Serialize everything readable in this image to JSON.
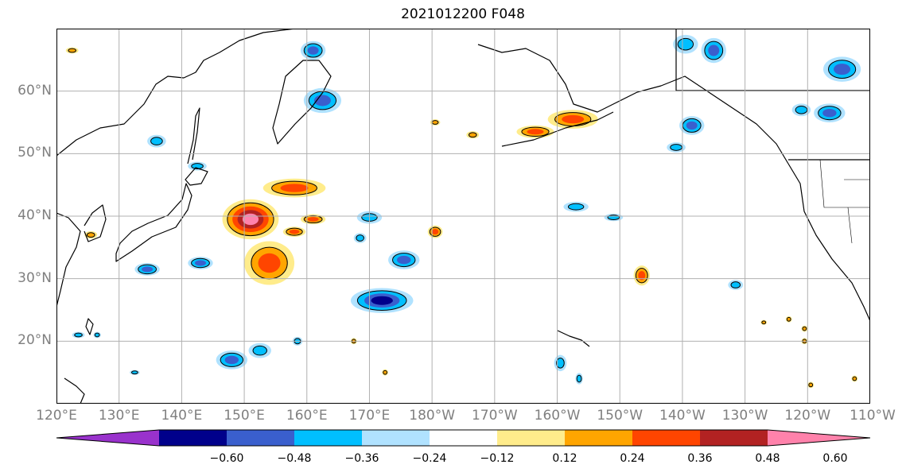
{
  "title": "2021012200 F048",
  "map": {
    "lon_range": [
      120,
      250
    ],
    "lat_range": [
      10,
      70
    ],
    "lat_ticks": [
      {
        "value": 20,
        "label": "20°N"
      },
      {
        "value": 30,
        "label": "30°N"
      },
      {
        "value": 40,
        "label": "40°N"
      },
      {
        "value": 50,
        "label": "50°N"
      },
      {
        "value": 60,
        "label": "60°N"
      }
    ],
    "lon_ticks": [
      {
        "value": 120,
        "label": "120°E"
      },
      {
        "value": 130,
        "label": "130°E"
      },
      {
        "value": 140,
        "label": "140°E"
      },
      {
        "value": 150,
        "label": "150°E"
      },
      {
        "value": 160,
        "label": "160°E"
      },
      {
        "value": 170,
        "label": "170°E"
      },
      {
        "value": 180,
        "label": "180°W"
      },
      {
        "value": 190,
        "label": "170°W"
      },
      {
        "value": 200,
        "label": "160°W"
      },
      {
        "value": 210,
        "label": "150°W"
      },
      {
        "value": 220,
        "label": "140°W"
      },
      {
        "value": 230,
        "label": "130°W"
      },
      {
        "value": 240,
        "label": "120°W"
      },
      {
        "value": 250,
        "label": "110°W"
      }
    ],
    "gridlines": true,
    "coastlines": true
  },
  "colorbar": {
    "levels": [
      -0.6,
      -0.48,
      -0.36,
      -0.24,
      -0.12,
      0.12,
      0.24,
      0.36,
      0.48,
      0.6
    ],
    "tick_labels": [
      "−0.60",
      "−0.48",
      "−0.36",
      "−0.24",
      "−0.12",
      "0.12",
      "0.24",
      "0.36",
      "0.48",
      "0.60"
    ],
    "colors": [
      "#9932cc",
      "#00008b",
      "#3a5fcd",
      "#00bfff",
      "#b0e2ff",
      "#ffffff",
      "#ffec8b",
      "#ffa500",
      "#ff4500",
      "#b22222",
      "#ff82ab"
    ],
    "extend": "both"
  },
  "anomalies": [
    {
      "lon": 151,
      "lat": 39.5,
      "rx": 4.5,
      "ry": 3.2,
      "value": 0.62
    },
    {
      "lon": 154,
      "lat": 32.5,
      "rx": 4,
      "ry": 3.5,
      "value": 0.42
    },
    {
      "lon": 158,
      "lat": 44.5,
      "rx": 5,
      "ry": 1.5,
      "value": 0.4
    },
    {
      "lon": 161,
      "lat": 39.5,
      "rx": 2,
      "ry": 0.8,
      "value": 0.4
    },
    {
      "lon": 158,
      "lat": 37.5,
      "rx": 1.8,
      "ry": 0.8,
      "value": 0.38
    },
    {
      "lon": 172,
      "lat": 26.5,
      "rx": 5,
      "ry": 2,
      "value": -0.48
    },
    {
      "lon": 175.5,
      "lat": 33,
      "rx": 2.5,
      "ry": 1.5,
      "value": -0.36
    },
    {
      "lon": 170,
      "lat": 39.8,
      "rx": 2,
      "ry": 1,
      "value": -0.32
    },
    {
      "lon": 168.5,
      "lat": 36.5,
      "rx": 1,
      "ry": 0.8,
      "value": -0.3
    },
    {
      "lon": 152.5,
      "lat": 18.5,
      "rx": 1.8,
      "ry": 1.2,
      "value": -0.32
    },
    {
      "lon": 148,
      "lat": 17,
      "rx": 2.5,
      "ry": 1.5,
      "value": -0.4
    },
    {
      "lon": 158.5,
      "lat": 20,
      "rx": 0.8,
      "ry": 0.7,
      "value": -0.3
    },
    {
      "lon": 143,
      "lat": 32.5,
      "rx": 2,
      "ry": 1,
      "value": -0.36
    },
    {
      "lon": 134.5,
      "lat": 31.5,
      "rx": 2,
      "ry": 1,
      "value": -0.36
    },
    {
      "lon": 162.5,
      "lat": 58.5,
      "rx": 3,
      "ry": 2,
      "value": -0.36
    },
    {
      "lon": 161,
      "lat": 66.5,
      "rx": 2,
      "ry": 1.5,
      "value": -0.36
    },
    {
      "lon": 142.5,
      "lat": 48,
      "rx": 1.5,
      "ry": 0.7,
      "value": -0.3
    },
    {
      "lon": 136,
      "lat": 52,
      "rx": 1.5,
      "ry": 1,
      "value": -0.3
    },
    {
      "lon": 202.5,
      "lat": 55.5,
      "rx": 4,
      "ry": 1.5,
      "value": 0.44
    },
    {
      "lon": 196.5,
      "lat": 53.5,
      "rx": 3,
      "ry": 1,
      "value": 0.4
    },
    {
      "lon": 180.5,
      "lat": 37.5,
      "rx": 1.2,
      "ry": 1,
      "value": 0.36
    },
    {
      "lon": 180.5,
      "lat": 55,
      "rx": 0.8,
      "ry": 0.5,
      "value": 0.34
    },
    {
      "lon": 186.5,
      "lat": 53,
      "rx": 1,
      "ry": 0.6,
      "value": 0.32
    },
    {
      "lon": 213.5,
      "lat": 30.5,
      "rx": 1.3,
      "ry": 1.6,
      "value": 0.38
    },
    {
      "lon": 203,
      "lat": 41.5,
      "rx": 2,
      "ry": 0.8,
      "value": -0.3
    },
    {
      "lon": 209,
      "lat": 39.8,
      "rx": 1.5,
      "ry": 0.6,
      "value": -0.3
    },
    {
      "lon": 221.5,
      "lat": 54.5,
      "rx": 2,
      "ry": 1.5,
      "value": -0.36
    },
    {
      "lon": 219,
      "lat": 51,
      "rx": 1.5,
      "ry": 0.8,
      "value": -0.3
    },
    {
      "lon": 243.5,
      "lat": 56.5,
      "rx": 2.5,
      "ry": 1.5,
      "value": -0.36
    },
    {
      "lon": 239,
      "lat": 57,
      "rx": 1.5,
      "ry": 1,
      "value": -0.34
    },
    {
      "lon": 245.5,
      "lat": 63.5,
      "rx": 3,
      "ry": 2,
      "value": -0.36
    },
    {
      "lon": 225,
      "lat": 66.5,
      "rx": 2,
      "ry": 2,
      "value": -0.36
    },
    {
      "lon": 220.5,
      "lat": 67.5,
      "rx": 2,
      "ry": 1.5,
      "value": -0.32
    },
    {
      "lon": 228.5,
      "lat": 29,
      "rx": 1.2,
      "ry": 0.8,
      "value": -0.32
    },
    {
      "lon": 200.5,
      "lat": 16.5,
      "rx": 1,
      "ry": 1.3,
      "value": -0.32
    },
    {
      "lon": 203.5,
      "lat": 14,
      "rx": 0.6,
      "ry": 0.9,
      "value": -0.3
    },
    {
      "lon": 122.5,
      "lat": 66.5,
      "rx": 1,
      "ry": 0.5,
      "value": 0.32
    },
    {
      "lon": 125.5,
      "lat": 37,
      "rx": 1,
      "ry": 0.6,
      "value": 0.3
    },
    {
      "lon": 239.5,
      "lat": 22,
      "rx": 0.5,
      "ry": 0.5,
      "value": 0.3
    },
    {
      "lon": 239.5,
      "lat": 20,
      "rx": 0.5,
      "ry": 0.5,
      "value": 0.3
    },
    {
      "lon": 237,
      "lat": 23.5,
      "rx": 0.5,
      "ry": 0.5,
      "value": 0.3
    },
    {
      "lon": 233,
      "lat": 23,
      "rx": 0.5,
      "ry": 0.4,
      "value": 0.3
    },
    {
      "lon": 240.5,
      "lat": 13,
      "rx": 0.5,
      "ry": 0.5,
      "value": 0.3
    },
    {
      "lon": 247.5,
      "lat": 14,
      "rx": 0.5,
      "ry": 0.5,
      "value": 0.3
    },
    {
      "lon": 167.5,
      "lat": 20,
      "rx": 0.5,
      "ry": 0.5,
      "value": 0.3
    },
    {
      "lon": 172.5,
      "lat": 15,
      "rx": 0.5,
      "ry": 0.5,
      "value": 0.3
    },
    {
      "lon": 123.5,
      "lat": 21,
      "rx": 1,
      "ry": 0.5,
      "value": -0.3
    },
    {
      "lon": 126.5,
      "lat": 21,
      "rx": 0.6,
      "ry": 0.5,
      "value": -0.3
    },
    {
      "lon": 132.5,
      "lat": 15,
      "rx": 0.8,
      "ry": 0.4,
      "value": -0.3
    }
  ]
}
